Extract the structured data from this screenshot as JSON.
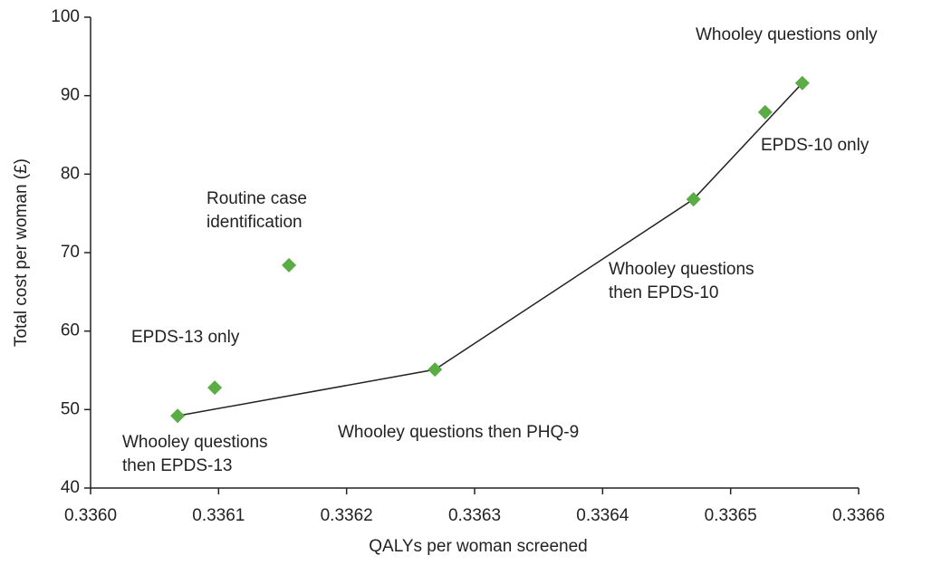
{
  "chart_data": {
    "type": "scatter",
    "xlabel": "QALYs per woman screened",
    "ylabel": "Total cost per woman (£)",
    "xlim": [
      0.336,
      0.3366
    ],
    "xticks": [
      {
        "value": 0.336,
        "label": "0.3360"
      },
      {
        "value": 0.3361,
        "label": "0.3361"
      },
      {
        "value": 0.3362,
        "label": "0.3362"
      },
      {
        "value": 0.3363,
        "label": "0.3363"
      },
      {
        "value": 0.3364,
        "label": "0.3364"
      },
      {
        "value": 0.3365,
        "label": "0.3365"
      },
      {
        "value": 0.3366,
        "label": "0.3366"
      }
    ],
    "ylim": [
      40,
      100
    ],
    "yticks": [
      40,
      50,
      60,
      70,
      80,
      90,
      100
    ],
    "color": "#5aac44",
    "line_color": "#222222",
    "points": [
      {
        "label": [
          "Whooley questions",
          "then EPDS-13"
        ],
        "x": 0.336068,
        "y": 49.2
      },
      {
        "label": [
          "EPDS-13 only"
        ],
        "x": 0.336097,
        "y": 52.8
      },
      {
        "label": [
          "Routine case",
          "identification"
        ],
        "x": 0.336155,
        "y": 68.4
      },
      {
        "label": [
          "Whooley questions then PHQ-9"
        ],
        "x": 0.336269,
        "y": 55.1
      },
      {
        "label": [
          "Whooley questions",
          "then EPDS-10"
        ],
        "x": 0.336471,
        "y": 76.8
      },
      {
        "label": [
          "EPDS-10 only"
        ],
        "x": 0.336527,
        "y": 87.9
      },
      {
        "label": [
          "Whooley questions only"
        ],
        "x": 0.336556,
        "y": 91.6
      }
    ],
    "frontier": {
      "x": [
        0.336068,
        0.336269,
        0.336471,
        0.336556
      ],
      "y": [
        49.2,
        55.1,
        76.8,
        91.6
      ]
    }
  }
}
